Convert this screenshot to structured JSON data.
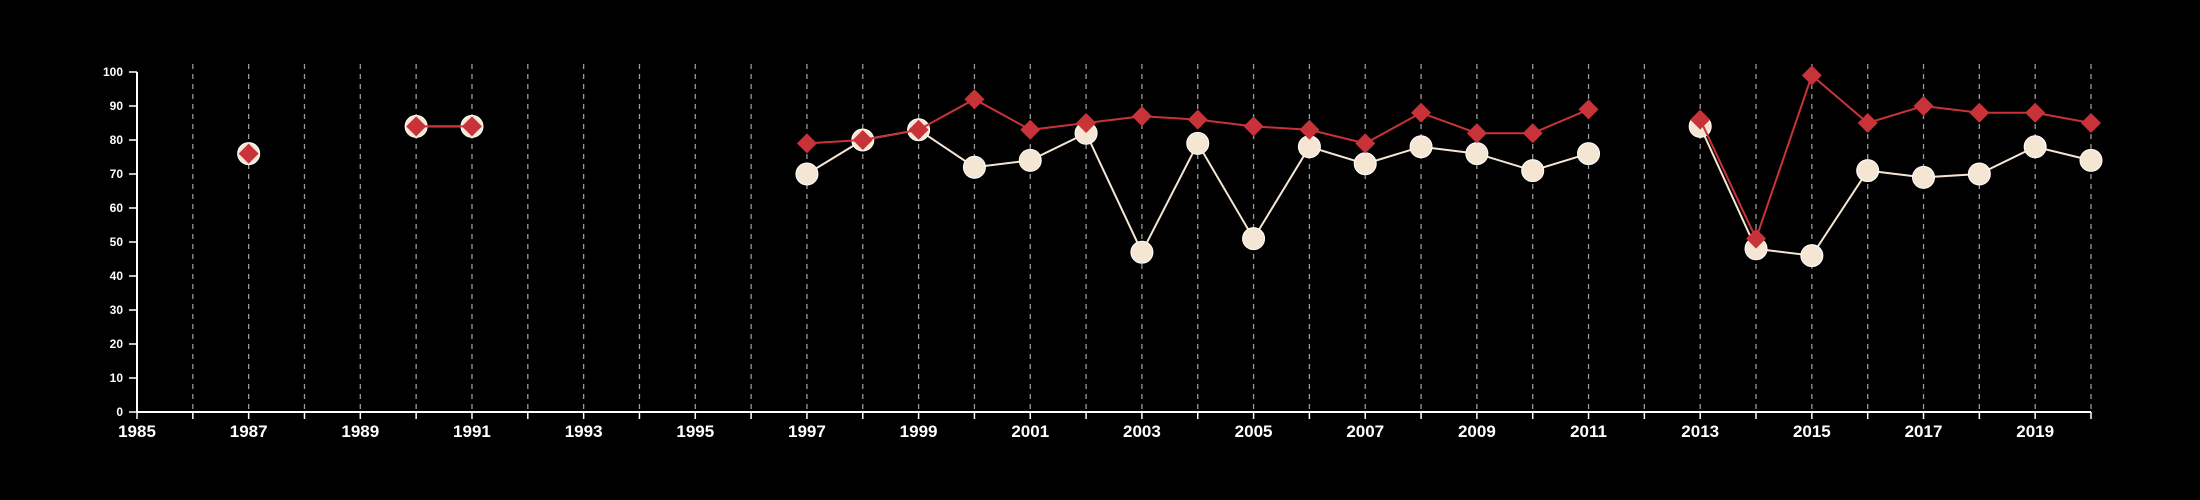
{
  "chart_data": {
    "type": "line",
    "title": "",
    "xlabel": "",
    "ylabel": "",
    "xlim": [
      1985,
      2020
    ],
    "ylim": [
      0,
      100
    ],
    "x_ticks": [
      1985,
      1987,
      1989,
      1991,
      1993,
      1995,
      1997,
      1999,
      2001,
      2003,
      2005,
      2007,
      2009,
      2011,
      2013,
      2015,
      2017,
      2019
    ],
    "y_ticks": [
      0,
      10,
      20,
      30,
      40,
      50,
      60,
      70,
      80,
      90,
      100
    ],
    "grid": "vertical dashed lines at each year",
    "legend": "none",
    "series": [
      {
        "color": "#f5e6d3",
        "marker": "circle",
        "points": [
          [
            1987,
            76
          ],
          [
            1990,
            84
          ],
          [
            1991,
            84
          ],
          [
            1997,
            70
          ],
          [
            1998,
            80
          ],
          [
            1999,
            83
          ],
          [
            2000,
            72
          ],
          [
            2001,
            74
          ],
          [
            2002,
            82
          ],
          [
            2003,
            47
          ],
          [
            2004,
            79
          ],
          [
            2005,
            51
          ],
          [
            2006,
            78
          ],
          [
            2007,
            73
          ],
          [
            2008,
            78
          ],
          [
            2009,
            76
          ],
          [
            2010,
            71
          ],
          [
            2011,
            76
          ],
          [
            2013,
            84
          ],
          [
            2014,
            48
          ],
          [
            2015,
            46
          ],
          [
            2016,
            71
          ],
          [
            2017,
            69
          ],
          [
            2018,
            70
          ],
          [
            2019,
            78
          ],
          [
            2020,
            74
          ]
        ]
      },
      {
        "color": "#c8333a",
        "marker": "diamond",
        "points": [
          [
            1987,
            76
          ],
          [
            1990,
            84
          ],
          [
            1991,
            84
          ],
          [
            1997,
            79
          ],
          [
            1998,
            80
          ],
          [
            1999,
            83
          ],
          [
            2000,
            92
          ],
          [
            2001,
            83
          ],
          [
            2002,
            85
          ],
          [
            2003,
            87
          ],
          [
            2004,
            86
          ],
          [
            2005,
            84
          ],
          [
            2006,
            83
          ],
          [
            2007,
            79
          ],
          [
            2008,
            88
          ],
          [
            2009,
            82
          ],
          [
            2010,
            82
          ],
          [
            2011,
            89
          ],
          [
            2013,
            86
          ],
          [
            2014,
            51
          ],
          [
            2015,
            99
          ],
          [
            2016,
            85
          ],
          [
            2017,
            90
          ],
          [
            2018,
            88
          ],
          [
            2019,
            88
          ],
          [
            2020,
            85
          ]
        ]
      }
    ]
  }
}
